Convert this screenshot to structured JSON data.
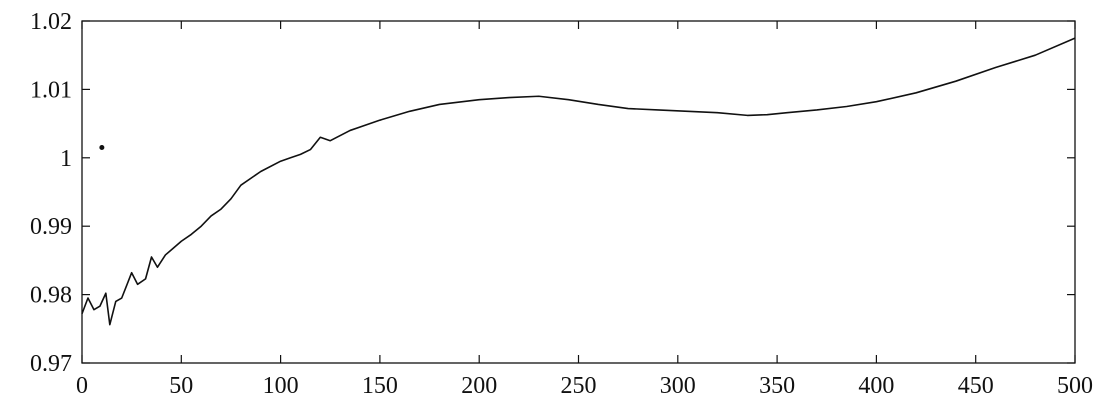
{
  "chart_data": {
    "type": "line",
    "title": "",
    "xlabel": "",
    "ylabel": "",
    "xlim": [
      0,
      500
    ],
    "ylim": [
      0.97,
      1.02
    ],
    "grid": false,
    "legend": "none",
    "x_ticks": [
      0,
      50,
      100,
      150,
      200,
      250,
      300,
      350,
      400,
      450,
      500
    ],
    "x_tick_labels": [
      "0",
      "50",
      "100",
      "150",
      "200",
      "250",
      "300",
      "350",
      "400",
      "450",
      "500"
    ],
    "y_ticks": [
      0.97,
      0.98,
      0.99,
      1.0,
      1.01,
      1.02
    ],
    "y_tick_labels": [
      "0.97",
      "0.98",
      "0.99",
      "1",
      "1.01",
      "1.02"
    ],
    "line_color": "#111111",
    "series": [
      {
        "x": [
          0,
          3,
          6,
          9,
          12,
          14,
          17,
          20,
          25,
          28,
          32,
          35,
          38,
          42,
          46,
          50,
          55,
          60,
          65,
          70,
          75,
          80,
          90,
          100,
          105,
          110,
          115,
          120,
          125,
          135,
          150,
          165,
          180,
          200,
          215,
          230,
          245,
          260,
          275,
          290,
          305,
          320,
          335,
          345,
          355,
          370,
          385,
          400,
          420,
          440,
          460,
          480,
          500
        ],
        "y": [
          0.9772,
          0.9795,
          0.9778,
          0.9783,
          0.9802,
          0.9756,
          0.979,
          0.9795,
          0.9832,
          0.9815,
          0.9823,
          0.9855,
          0.984,
          0.9858,
          0.9868,
          0.9878,
          0.9888,
          0.99,
          0.9915,
          0.9925,
          0.994,
          0.996,
          0.998,
          0.9995,
          1.0,
          1.0005,
          1.0012,
          1.003,
          1.0025,
          1.004,
          1.0055,
          1.0068,
          1.0078,
          1.0085,
          1.0088,
          1.009,
          1.0085,
          1.0078,
          1.0072,
          1.007,
          1.0068,
          1.0066,
          1.0062,
          1.0063,
          1.0066,
          1.007,
          1.0075,
          1.0082,
          1.0095,
          1.0112,
          1.0132,
          1.015,
          1.0175
        ]
      }
    ],
    "annotations": [
      {
        "text": "",
        "x": 10,
        "y": 1.0015,
        "marker": "dot"
      }
    ]
  }
}
